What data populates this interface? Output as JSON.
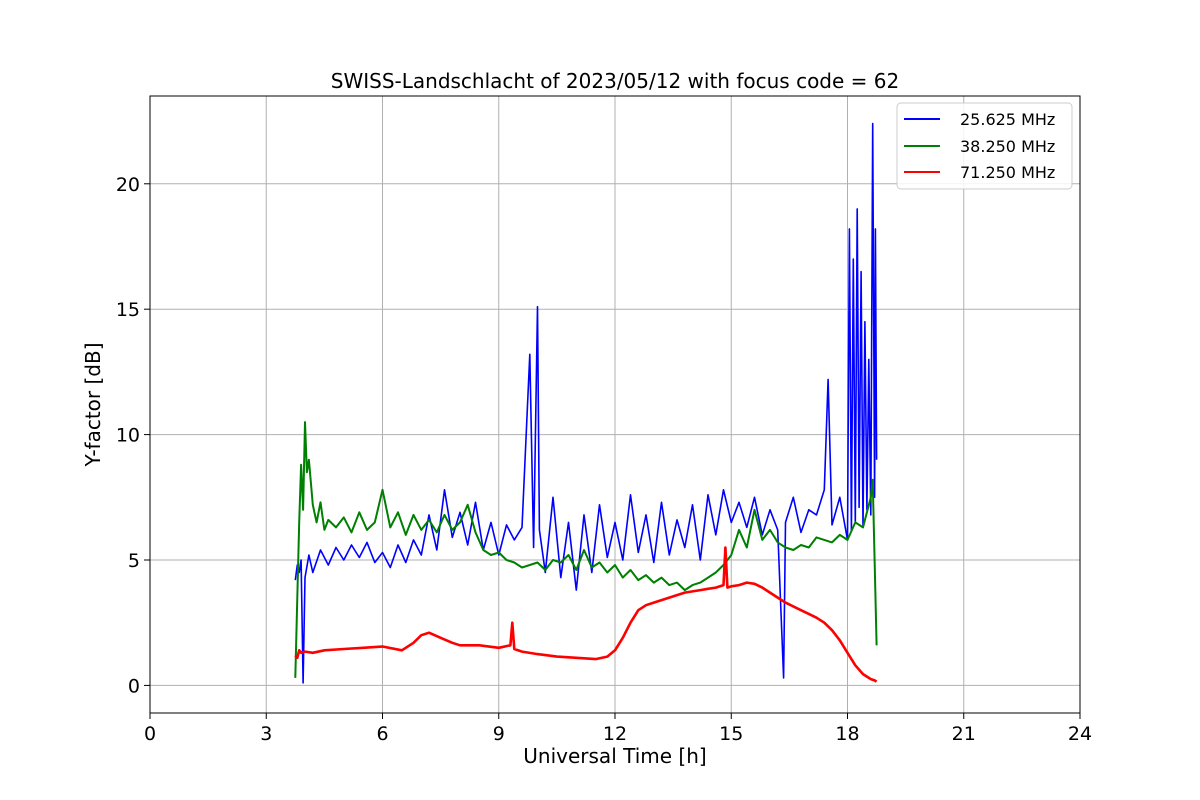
{
  "chart_data": {
    "type": "line",
    "title": "SWISS-Landschlacht of 2023/05/12 with focus code = 62",
    "xlabel": "Universal Time [h]",
    "ylabel": "Y-factor [dB]",
    "xlim": [
      0,
      24
    ],
    "ylim": [
      -1.1,
      23.5
    ],
    "xticks": [
      0,
      3,
      6,
      9,
      12,
      15,
      18,
      21,
      24
    ],
    "yticks": [
      0,
      5,
      10,
      15,
      20
    ],
    "grid": true,
    "legend_position": "top-right",
    "series": [
      {
        "name": "25.625 MHz",
        "color": "#0000ff",
        "x": [
          3.75,
          3.8,
          3.85,
          3.9,
          3.95,
          4.0,
          4.1,
          4.2,
          4.4,
          4.6,
          4.8,
          5.0,
          5.2,
          5.4,
          5.6,
          5.8,
          6.0,
          6.2,
          6.4,
          6.6,
          6.8,
          7.0,
          7.2,
          7.4,
          7.6,
          7.8,
          8.0,
          8.2,
          8.4,
          8.6,
          8.8,
          9.0,
          9.2,
          9.4,
          9.6,
          9.8,
          9.9,
          10.0,
          10.05,
          10.2,
          10.4,
          10.6,
          10.8,
          11.0,
          11.2,
          11.4,
          11.6,
          11.8,
          12.0,
          12.2,
          12.4,
          12.6,
          12.8,
          13.0,
          13.2,
          13.4,
          13.6,
          13.8,
          14.0,
          14.2,
          14.4,
          14.6,
          14.8,
          15.0,
          15.2,
          15.4,
          15.6,
          15.8,
          16.0,
          16.2,
          16.35,
          16.4,
          16.6,
          16.8,
          17.0,
          17.2,
          17.4,
          17.5,
          17.6,
          17.8,
          18.0,
          18.05,
          18.1,
          18.15,
          18.2,
          18.25,
          18.3,
          18.35,
          18.4,
          18.45,
          18.5,
          18.55,
          18.6,
          18.65,
          18.7,
          18.72,
          18.75
        ],
        "values": [
          4.2,
          4.8,
          4.5,
          5.0,
          0.1,
          4.3,
          5.2,
          4.5,
          5.4,
          4.8,
          5.5,
          5.0,
          5.6,
          5.1,
          5.7,
          4.9,
          5.3,
          4.7,
          5.6,
          4.9,
          5.8,
          5.2,
          6.8,
          5.4,
          7.8,
          5.9,
          6.9,
          5.6,
          7.3,
          5.4,
          6.5,
          5.2,
          6.4,
          5.8,
          6.3,
          13.2,
          5.5,
          15.1,
          6.2,
          4.5,
          7.5,
          4.3,
          6.5,
          3.8,
          6.8,
          4.5,
          7.2,
          5.1,
          6.5,
          5.0,
          7.6,
          5.3,
          6.8,
          4.9,
          7.3,
          5.2,
          6.6,
          5.5,
          7.2,
          5.0,
          7.6,
          6.0,
          7.8,
          6.5,
          7.3,
          6.3,
          7.5,
          6.0,
          7.0,
          6.2,
          0.3,
          6.5,
          7.5,
          6.1,
          7.0,
          6.8,
          7.8,
          12.2,
          6.4,
          7.5,
          5.8,
          18.2,
          6.2,
          17.0,
          6.5,
          19.0,
          7.1,
          16.5,
          6.3,
          14.5,
          7.0,
          13.0,
          6.8,
          22.4,
          7.5,
          18.2,
          9.0
        ]
      },
      {
        "name": "38.250 MHz",
        "color": "#008000",
        "x": [
          3.75,
          3.8,
          3.85,
          3.9,
          3.95,
          4.0,
          4.05,
          4.1,
          4.2,
          4.3,
          4.4,
          4.5,
          4.6,
          4.8,
          5.0,
          5.2,
          5.4,
          5.6,
          5.8,
          6.0,
          6.2,
          6.4,
          6.6,
          6.8,
          7.0,
          7.2,
          7.4,
          7.6,
          7.8,
          8.0,
          8.2,
          8.4,
          8.6,
          8.8,
          9.0,
          9.2,
          9.4,
          9.6,
          9.8,
          10.0,
          10.2,
          10.4,
          10.6,
          10.8,
          11.0,
          11.2,
          11.4,
          11.6,
          11.8,
          12.0,
          12.2,
          12.4,
          12.6,
          12.8,
          13.0,
          13.2,
          13.4,
          13.6,
          13.8,
          14.0,
          14.2,
          14.4,
          14.6,
          14.8,
          15.0,
          15.2,
          15.4,
          15.6,
          15.8,
          16.0,
          16.2,
          16.4,
          16.6,
          16.8,
          17.0,
          17.2,
          17.4,
          17.6,
          17.8,
          18.0,
          18.2,
          18.4,
          18.6,
          18.65,
          18.7,
          18.75
        ],
        "values": [
          0.3,
          3.5,
          6.5,
          8.8,
          7.0,
          10.5,
          8.5,
          9.0,
          7.2,
          6.5,
          7.3,
          6.2,
          6.6,
          6.3,
          6.7,
          6.1,
          6.9,
          6.2,
          6.5,
          7.8,
          6.3,
          6.9,
          6.0,
          6.8,
          6.2,
          6.6,
          6.1,
          6.8,
          6.2,
          6.5,
          7.2,
          6.1,
          5.4,
          5.2,
          5.3,
          5.0,
          4.9,
          4.7,
          4.8,
          4.9,
          4.6,
          5.0,
          4.9,
          5.2,
          4.6,
          5.4,
          4.7,
          4.9,
          4.5,
          4.8,
          4.3,
          4.6,
          4.2,
          4.4,
          4.1,
          4.3,
          4.0,
          4.1,
          3.8,
          4.0,
          4.1,
          4.3,
          4.5,
          4.8,
          5.2,
          6.2,
          5.5,
          7.0,
          5.8,
          6.2,
          5.7,
          5.5,
          5.4,
          5.6,
          5.5,
          5.9,
          5.8,
          5.7,
          6.0,
          5.8,
          6.5,
          6.3,
          7.5,
          8.2,
          5.0,
          1.6
        ]
      },
      {
        "name": "71.250 MHz",
        "color": "#ff0000",
        "x": [
          3.75,
          3.8,
          3.85,
          3.9,
          4.0,
          4.2,
          4.5,
          5.0,
          5.5,
          6.0,
          6.5,
          6.8,
          7.0,
          7.2,
          7.5,
          7.8,
          8.0,
          8.5,
          9.0,
          9.3,
          9.35,
          9.4,
          9.6,
          10.0,
          10.5,
          11.0,
          11.5,
          11.8,
          12.0,
          12.2,
          12.4,
          12.6,
          12.8,
          13.0,
          13.2,
          13.4,
          13.6,
          13.8,
          14.0,
          14.2,
          14.4,
          14.6,
          14.8,
          14.85,
          14.9,
          15.0,
          15.2,
          15.4,
          15.6,
          15.8,
          16.0,
          16.2,
          16.4,
          16.6,
          16.8,
          17.0,
          17.2,
          17.4,
          17.6,
          17.8,
          18.0,
          18.2,
          18.4,
          18.6,
          18.7,
          18.75
        ],
        "values": [
          1.2,
          1.1,
          1.4,
          1.3,
          1.35,
          1.3,
          1.4,
          1.45,
          1.5,
          1.55,
          1.4,
          1.7,
          2.0,
          2.1,
          1.9,
          1.7,
          1.6,
          1.6,
          1.5,
          1.6,
          2.5,
          1.45,
          1.35,
          1.25,
          1.15,
          1.1,
          1.05,
          1.15,
          1.4,
          1.9,
          2.5,
          3.0,
          3.2,
          3.3,
          3.4,
          3.5,
          3.6,
          3.7,
          3.75,
          3.8,
          3.85,
          3.9,
          4.0,
          5.5,
          3.9,
          3.95,
          4.0,
          4.1,
          4.05,
          3.9,
          3.7,
          3.5,
          3.3,
          3.15,
          3.0,
          2.85,
          2.7,
          2.5,
          2.2,
          1.8,
          1.3,
          0.8,
          0.45,
          0.25,
          0.2,
          0.15
        ]
      }
    ]
  }
}
